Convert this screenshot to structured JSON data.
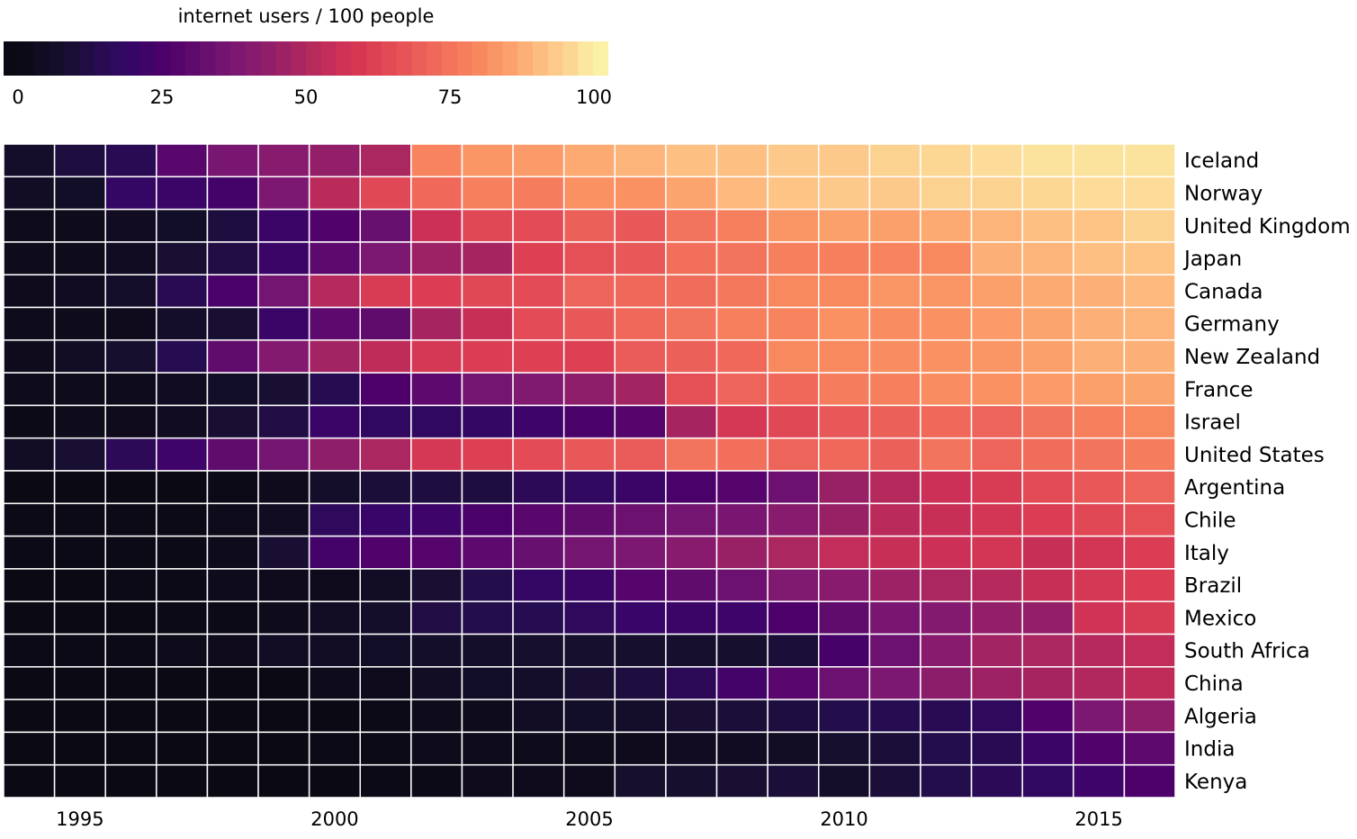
{
  "chart_data": {
    "type": "heatmap",
    "title": "",
    "legend": {
      "title": "internet users / 100 people",
      "ticks": [
        0,
        25,
        50,
        75,
        100
      ],
      "tick_labels": [
        "0",
        "25",
        "50",
        "75",
        "100"
      ],
      "range": [
        0,
        100
      ],
      "colormap": "magma",
      "placement": "top-left"
    },
    "xlabel": "",
    "ylabel": "",
    "years": [
      1994,
      1995,
      1996,
      1997,
      1998,
      1999,
      2000,
      2001,
      2002,
      2003,
      2004,
      2005,
      2006,
      2007,
      2008,
      2009,
      2010,
      2011,
      2012,
      2013,
      2014,
      2015,
      2016
    ],
    "x_tick_labels": [
      "1995",
      "2000",
      "2005",
      "2010",
      "2015"
    ],
    "x_tick_values": [
      1995,
      2000,
      2005,
      2010,
      2015
    ],
    "countries": [
      "Iceland",
      "Norway",
      "United Kingdom",
      "Japan",
      "Canada",
      "Germany",
      "New Zealand",
      "France",
      "Israel",
      "United States",
      "Argentina",
      "Chile",
      "Italy",
      "Brazil",
      "Mexico",
      "South Africa",
      "China",
      "Algeria",
      "India",
      "Kenya"
    ],
    "values": [
      [
        7,
        11,
        15,
        29,
        37,
        41,
        44,
        49,
        79,
        83,
        84,
        87,
        89,
        91,
        91,
        93,
        93,
        95,
        96,
        97,
        98,
        98,
        98
      ],
      [
        5,
        6,
        19,
        21,
        23,
        38,
        52,
        64,
        72,
        78,
        77,
        82,
        82,
        86,
        90,
        92,
        93,
        93,
        95,
        95,
        96,
        97,
        97
      ],
      [
        2,
        2,
        4,
        6,
        11,
        21,
        27,
        33,
        56,
        64,
        65,
        70,
        68,
        75,
        78,
        83,
        85,
        85,
        87,
        89,
        91,
        92,
        95
      ],
      [
        2,
        2,
        4,
        9,
        12,
        21,
        30,
        38,
        46,
        48,
        62,
        66,
        68,
        74,
        75,
        78,
        78,
        79,
        80,
        88,
        89,
        91,
        92
      ],
      [
        3,
        4,
        7,
        15,
        25,
        36,
        51,
        60,
        61,
        64,
        65,
        71,
        72,
        73,
        76,
        80,
        80,
        83,
        83,
        85,
        87,
        88,
        90
      ],
      [
        2,
        2,
        3,
        7,
        9,
        21,
        30,
        31,
        48,
        55,
        65,
        68,
        72,
        75,
        78,
        79,
        82,
        81,
        82,
        84,
        86,
        88,
        89
      ],
      [
        3,
        5,
        8,
        14,
        31,
        40,
        47,
        53,
        59,
        61,
        62,
        62,
        69,
        70,
        72,
        80,
        80,
        81,
        82,
        83,
        85,
        88,
        88
      ],
      [
        2,
        2,
        2,
        4,
        6,
        9,
        14,
        26,
        30,
        36,
        39,
        43,
        47,
        66,
        71,
        72,
        77,
        78,
        81,
        82,
        84,
        85,
        86
      ],
      [
        1,
        2,
        3,
        4,
        9,
        12,
        21,
        18,
        18,
        19,
        22,
        25,
        28,
        48,
        59,
        64,
        68,
        70,
        72,
        71,
        75,
        78,
        80
      ],
      [
        5,
        9,
        16,
        22,
        31,
        36,
        43,
        49,
        59,
        62,
        65,
        68,
        69,
        75,
        74,
        71,
        72,
        70,
        75,
        71,
        73,
        75,
        77
      ],
      [
        0,
        0,
        0,
        0,
        1,
        3,
        7,
        10,
        11,
        11,
        16,
        18,
        21,
        25,
        28,
        34,
        45,
        51,
        56,
        60,
        65,
        68,
        71
      ],
      [
        1,
        1,
        1,
        1,
        2,
        4,
        17,
        20,
        22,
        25,
        29,
        31,
        34,
        36,
        37,
        41,
        45,
        52,
        55,
        58,
        61,
        64,
        66
      ],
      [
        1,
        1,
        1,
        1,
        2,
        9,
        23,
        27,
        28,
        30,
        33,
        36,
        38,
        41,
        45,
        49,
        54,
        55,
        56,
        58,
        55,
        58,
        61
      ],
      [
        0,
        0,
        1,
        1,
        2,
        3,
        3,
        5,
        9,
        13,
        19,
        21,
        28,
        31,
        34,
        39,
        41,
        46,
        49,
        51,
        55,
        59,
        61
      ],
      [
        0,
        0,
        0,
        1,
        1,
        2,
        5,
        7,
        12,
        13,
        14,
        17,
        20,
        21,
        22,
        26,
        31,
        37,
        40,
        44,
        44,
        57,
        60
      ],
      [
        1,
        1,
        1,
        2,
        3,
        5,
        5,
        6,
        7,
        7,
        8,
        8,
        8,
        8,
        8,
        10,
        24,
        34,
        41,
        47,
        49,
        51,
        54
      ],
      [
        0,
        0,
        0,
        0,
        0,
        0,
        2,
        3,
        5,
        6,
        7,
        9,
        11,
        16,
        23,
        29,
        34,
        38,
        42,
        46,
        48,
        50,
        53
      ],
      [
        0,
        0,
        0,
        0,
        0,
        0,
        0,
        1,
        2,
        2,
        5,
        6,
        7,
        9,
        10,
        11,
        13,
        14,
        15,
        17,
        27,
        38,
        43
      ],
      [
        0,
        0,
        0,
        0,
        0,
        0,
        1,
        1,
        2,
        2,
        2,
        2,
        3,
        4,
        4,
        5,
        8,
        10,
        13,
        15,
        21,
        27,
        30
      ],
      [
        0,
        0,
        0,
        0,
        0,
        0,
        0,
        1,
        1,
        3,
        3,
        3,
        8,
        8,
        9,
        10,
        7,
        10,
        13,
        16,
        18,
        22,
        26
      ]
    ],
    "grid": false,
    "cell_border_color": "#ffffff"
  }
}
